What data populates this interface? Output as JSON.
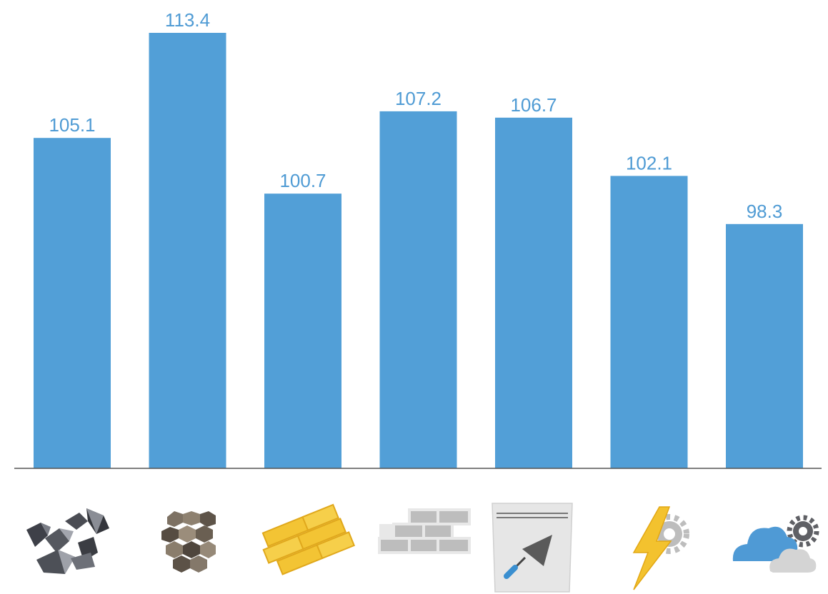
{
  "chart_data": {
    "type": "bar",
    "categories": [
      "coal",
      "gravel",
      "wood",
      "bricks",
      "cement",
      "electricity",
      "cloud-services"
    ],
    "values": [
      105.1,
      113.4,
      100.7,
      107.2,
      106.7,
      102.1,
      98.3
    ],
    "value_labels": [
      "105.1",
      "113.4",
      "100.7",
      "107.2",
      "106.7",
      "102.1",
      "98.3"
    ],
    "title": "",
    "xlabel": "",
    "ylabel": "",
    "ylim": [
      79,
      115
    ],
    "grid": false,
    "legend": "none",
    "bar_color": "#529fd7",
    "label_color": "#4f9bd4",
    "axis_color": "#555555"
  },
  "icons": [
    {
      "name": "coal-icon"
    },
    {
      "name": "gravel-icon"
    },
    {
      "name": "wood-planks-icon"
    },
    {
      "name": "brick-wall-icon"
    },
    {
      "name": "cement-bag-trowel-icon"
    },
    {
      "name": "lightning-gear-icon"
    },
    {
      "name": "cloud-gear-icon"
    }
  ]
}
